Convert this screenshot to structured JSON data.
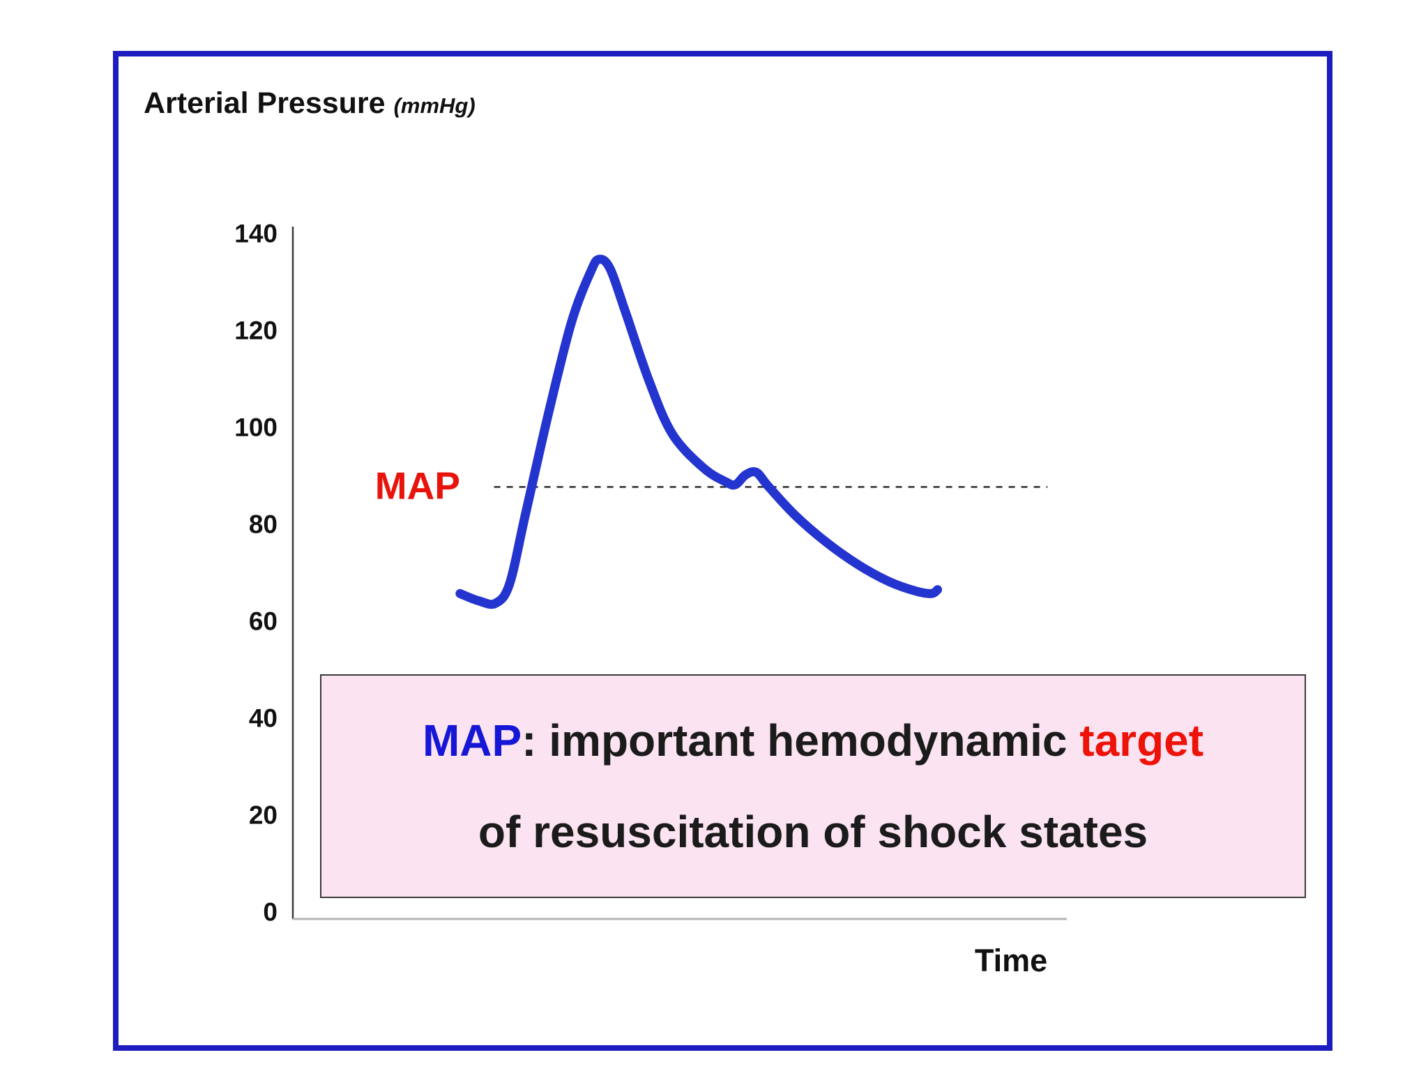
{
  "header": {
    "title": "Arterial Pressure",
    "unit": "(mmHg)"
  },
  "frame_color": "#1d1dc0",
  "map_annotation": {
    "label": "MAP",
    "label_color": "#e8140c",
    "value": 88,
    "t_start": 2.6,
    "t_end": 9.75,
    "line_color": "#2b2b2b"
  },
  "callout": {
    "bg": "#fbe3f2",
    "border_color": "#3a3a3a",
    "line1": [
      {
        "text": "MAP",
        "color": "#1616d6"
      },
      {
        "text": ": important hemodynamic ",
        "color": "#1b1b1b"
      },
      {
        "text": "target",
        "color": "#ee1309"
      }
    ],
    "line2": "of resuscitation of shock states",
    "line2_color": "#1b1b1b"
  },
  "chart_data": {
    "type": "line",
    "title": "Arterial Pressure (mmHg)",
    "xlabel": "Time",
    "ylabel": "Arterial Pressure (mmHg)",
    "ylim": [
      0,
      140
    ],
    "yticks": [
      140,
      120,
      100,
      80,
      60,
      40,
      20,
      0
    ],
    "grid": false,
    "legend": "none",
    "series": [
      {
        "name": "arterial pressure waveform",
        "color": "#2334cf",
        "points": [
          [
            2.16,
            66
          ],
          [
            2.4,
            64.5
          ],
          [
            2.62,
            64
          ],
          [
            2.8,
            68
          ],
          [
            3.0,
            82
          ],
          [
            3.3,
            103
          ],
          [
            3.6,
            122
          ],
          [
            3.85,
            132.5
          ],
          [
            3.96,
            135
          ],
          [
            4.1,
            133
          ],
          [
            4.3,
            124
          ],
          [
            4.6,
            110
          ],
          [
            4.9,
            99
          ],
          [
            5.3,
            92
          ],
          [
            5.6,
            89
          ],
          [
            5.72,
            88.5
          ],
          [
            5.85,
            90.5
          ],
          [
            5.99,
            91
          ],
          [
            6.15,
            88
          ],
          [
            6.5,
            82
          ],
          [
            6.9,
            76.5
          ],
          [
            7.3,
            72
          ],
          [
            7.7,
            68.5
          ],
          [
            8.05,
            66.5
          ],
          [
            8.25,
            66
          ],
          [
            8.33,
            66.8
          ]
        ],
        "key_values": {
          "systolic_peak": 135,
          "dicrotic_notch": 88,
          "start": 66,
          "end": 66
        }
      }
    ],
    "reference_lines": [
      {
        "label": "MAP",
        "value": 88,
        "style": "dashed"
      }
    ]
  }
}
